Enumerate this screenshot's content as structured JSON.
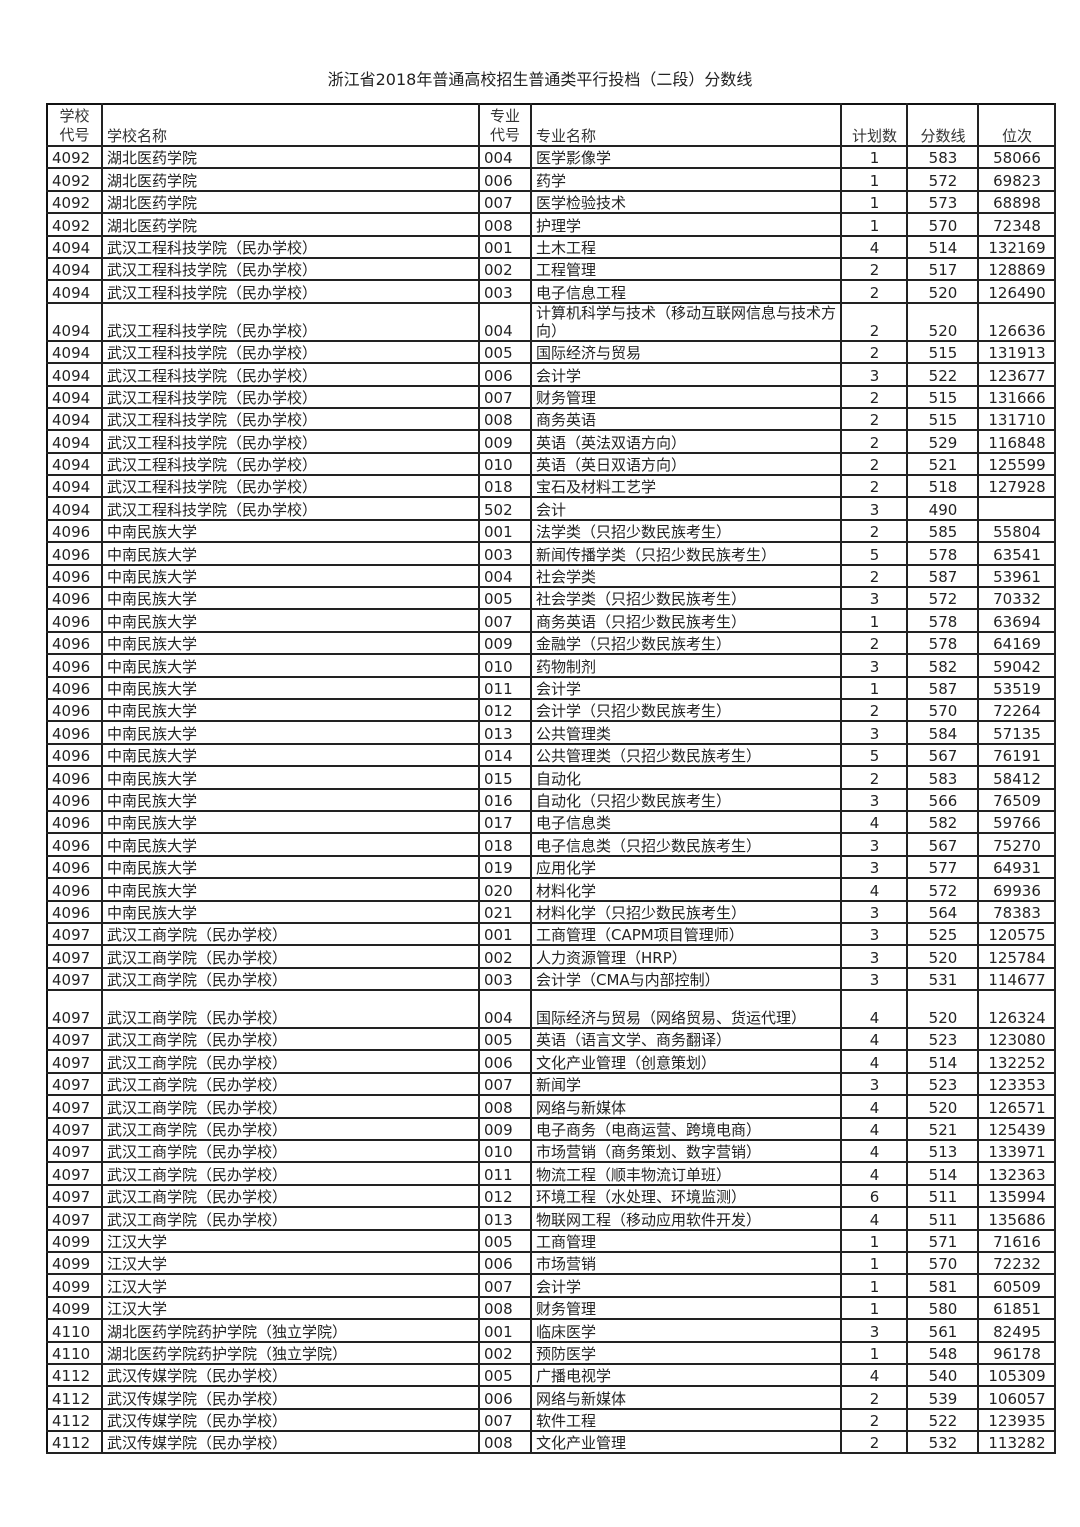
{
  "title": "浙江省2018年普通高校招生普通类平行投档（二段）分数线",
  "headers": {
    "school_code_line1": "学校",
    "school_code_line2": "代号",
    "school_name": "学校名称",
    "major_code_line1": "专业",
    "major_code_line2": "代号",
    "major_name": "专业名称",
    "plan": "计划数",
    "score": "分数线",
    "rank": "位次"
  },
  "rows": [
    [
      "4092",
      "湖北医药学院",
      "004",
      "医学影像学",
      "1",
      "583",
      "58066"
    ],
    [
      "4092",
      "湖北医药学院",
      "006",
      "药学",
      "1",
      "572",
      "69823"
    ],
    [
      "4092",
      "湖北医药学院",
      "007",
      "医学检验技术",
      "1",
      "573",
      "68898"
    ],
    [
      "4092",
      "湖北医药学院",
      "008",
      "护理学",
      "1",
      "570",
      "72348"
    ],
    [
      "4094",
      "武汉工程科技学院（民办学校）",
      "001",
      "土木工程",
      "4",
      "514",
      "132169"
    ],
    [
      "4094",
      "武汉工程科技学院（民办学校）",
      "002",
      "工程管理",
      "2",
      "517",
      "128869"
    ],
    [
      "4094",
      "武汉工程科技学院（民办学校）",
      "003",
      "电子信息工程",
      "2",
      "520",
      "126490"
    ],
    [
      "4094",
      "武汉工程科技学院（民办学校）",
      "004",
      "计算机科学与技术（移动互联网信息与技术方向）",
      "2",
      "520",
      "126636"
    ],
    [
      "4094",
      "武汉工程科技学院（民办学校）",
      "005",
      "国际经济与贸易",
      "2",
      "515",
      "131913"
    ],
    [
      "4094",
      "武汉工程科技学院（民办学校）",
      "006",
      "会计学",
      "3",
      "522",
      "123677"
    ],
    [
      "4094",
      "武汉工程科技学院（民办学校）",
      "007",
      "财务管理",
      "2",
      "515",
      "131666"
    ],
    [
      "4094",
      "武汉工程科技学院（民办学校）",
      "008",
      "商务英语",
      "2",
      "515",
      "131710"
    ],
    [
      "4094",
      "武汉工程科技学院（民办学校）",
      "009",
      "英语（英法双语方向）",
      "2",
      "529",
      "116848"
    ],
    [
      "4094",
      "武汉工程科技学院（民办学校）",
      "010",
      "英语（英日双语方向）",
      "2",
      "521",
      "125599"
    ],
    [
      "4094",
      "武汉工程科技学院（民办学校）",
      "018",
      "宝石及材料工艺学",
      "2",
      "518",
      "127928"
    ],
    [
      "4094",
      "武汉工程科技学院（民办学校）",
      "502",
      "会计",
      "3",
      "490",
      ""
    ],
    [
      "4096",
      "中南民族大学",
      "001",
      "法学类（只招少数民族考生）",
      "2",
      "585",
      "55804"
    ],
    [
      "4096",
      "中南民族大学",
      "003",
      "新闻传播学类（只招少数民族考生）",
      "5",
      "578",
      "63541"
    ],
    [
      "4096",
      "中南民族大学",
      "004",
      "社会学类",
      "2",
      "587",
      "53961"
    ],
    [
      "4096",
      "中南民族大学",
      "005",
      "社会学类（只招少数民族考生）",
      "3",
      "572",
      "70332"
    ],
    [
      "4096",
      "中南民族大学",
      "007",
      "商务英语（只招少数民族考生）",
      "1",
      "578",
      "63694"
    ],
    [
      "4096",
      "中南民族大学",
      "009",
      "金融学（只招少数民族考生）",
      "2",
      "578",
      "64169"
    ],
    [
      "4096",
      "中南民族大学",
      "010",
      "药物制剂",
      "3",
      "582",
      "59042"
    ],
    [
      "4096",
      "中南民族大学",
      "011",
      "会计学",
      "1",
      "587",
      "53519"
    ],
    [
      "4096",
      "中南民族大学",
      "012",
      "会计学（只招少数民族考生）",
      "2",
      "570",
      "72264"
    ],
    [
      "4096",
      "中南民族大学",
      "013",
      "公共管理类",
      "3",
      "584",
      "57135"
    ],
    [
      "4096",
      "中南民族大学",
      "014",
      "公共管理类（只招少数民族考生）",
      "5",
      "567",
      "76191"
    ],
    [
      "4096",
      "中南民族大学",
      "015",
      "自动化",
      "2",
      "583",
      "58412"
    ],
    [
      "4096",
      "中南民族大学",
      "016",
      "自动化（只招少数民族考生）",
      "3",
      "566",
      "76509"
    ],
    [
      "4096",
      "中南民族大学",
      "017",
      "电子信息类",
      "4",
      "582",
      "59766"
    ],
    [
      "4096",
      "中南民族大学",
      "018",
      "电子信息类（只招少数民族考生）",
      "3",
      "567",
      "75270"
    ],
    [
      "4096",
      "中南民族大学",
      "019",
      "应用化学",
      "3",
      "577",
      "64931"
    ],
    [
      "4096",
      "中南民族大学",
      "020",
      "材料化学",
      "4",
      "572",
      "69936"
    ],
    [
      "4096",
      "中南民族大学",
      "021",
      "材料化学（只招少数民族考生）",
      "3",
      "564",
      "78383"
    ],
    [
      "4097",
      "武汉工商学院（民办学校）",
      "001",
      "工商管理（CAPM项目管理师）",
      "3",
      "525",
      "120575"
    ],
    [
      "4097",
      "武汉工商学院（民办学校）",
      "002",
      "人力资源管理（HRP）",
      "3",
      "520",
      "125784"
    ],
    [
      "4097",
      "武汉工商学院（民办学校）",
      "003",
      "会计学（CMA与内部控制）",
      "3",
      "531",
      "114677"
    ],
    [
      "4097",
      "武汉工商学院（民办学校）",
      "004",
      "国际经济与贸易（网络贸易、货运代理）",
      "4",
      "520",
      "126324"
    ],
    [
      "4097",
      "武汉工商学院（民办学校）",
      "005",
      "英语（语言文学、商务翻译）",
      "4",
      "523",
      "123080"
    ],
    [
      "4097",
      "武汉工商学院（民办学校）",
      "006",
      "文化产业管理（创意策划）",
      "4",
      "514",
      "132252"
    ],
    [
      "4097",
      "武汉工商学院（民办学校）",
      "007",
      "新闻学",
      "3",
      "523",
      "123353"
    ],
    [
      "4097",
      "武汉工商学院（民办学校）",
      "008",
      "网络与新媒体",
      "4",
      "520",
      "126571"
    ],
    [
      "4097",
      "武汉工商学院（民办学校）",
      "009",
      "电子商务（电商运营、跨境电商）",
      "4",
      "521",
      "125439"
    ],
    [
      "4097",
      "武汉工商学院（民办学校）",
      "010",
      "市场营销（商务策划、数字营销）",
      "4",
      "513",
      "133971"
    ],
    [
      "4097",
      "武汉工商学院（民办学校）",
      "011",
      "物流工程（顺丰物流订单班）",
      "4",
      "514",
      "132363"
    ],
    [
      "4097",
      "武汉工商学院（民办学校）",
      "012",
      "环境工程（水处理、环境监测）",
      "6",
      "511",
      "135994"
    ],
    [
      "4097",
      "武汉工商学院（民办学校）",
      "013",
      "物联网工程（移动应用软件开发）",
      "4",
      "511",
      "135686"
    ],
    [
      "4099",
      "江汉大学",
      "005",
      "工商管理",
      "1",
      "571",
      "71616"
    ],
    [
      "4099",
      "江汉大学",
      "006",
      "市场营销",
      "1",
      "570",
      "72232"
    ],
    [
      "4099",
      "江汉大学",
      "007",
      "会计学",
      "1",
      "581",
      "60509"
    ],
    [
      "4099",
      "江汉大学",
      "008",
      "财务管理",
      "1",
      "580",
      "61851"
    ],
    [
      "4110",
      "湖北医药学院药护学院（独立学院）",
      "001",
      "临床医学",
      "3",
      "561",
      "82495"
    ],
    [
      "4110",
      "湖北医药学院药护学院（独立学院）",
      "002",
      "预防医学",
      "1",
      "548",
      "96178"
    ],
    [
      "4112",
      "武汉传媒学院（民办学校）",
      "005",
      "广播电视学",
      "4",
      "540",
      "105309"
    ],
    [
      "4112",
      "武汉传媒学院（民办学校）",
      "006",
      "网络与新媒体",
      "2",
      "539",
      "106057"
    ],
    [
      "4112",
      "武汉传媒学院（民办学校）",
      "007",
      "软件工程",
      "2",
      "522",
      "123935"
    ],
    [
      "4112",
      "武汉传媒学院（民办学校）",
      "008",
      "文化产业管理",
      "2",
      "532",
      "113282"
    ]
  ]
}
